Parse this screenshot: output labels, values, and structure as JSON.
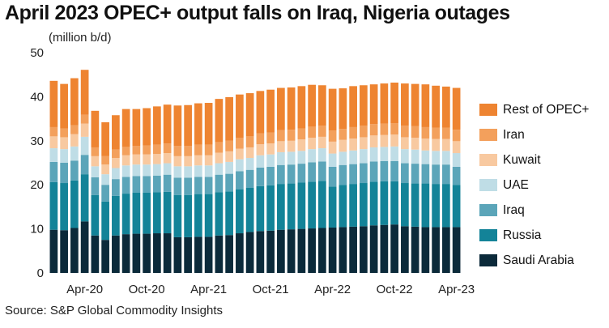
{
  "title": "April 2023 OPEC+ output falls on Iraq, Nigeria outages",
  "unit": "(million b/d)",
  "source": "Source: S&P Global Commodity Insights",
  "chart_data": {
    "type": "bar",
    "stacked": true,
    "categories": [
      "Jan-20",
      "Feb-20",
      "Mar-20",
      "Apr-20",
      "May-20",
      "Jun-20",
      "Jul-20",
      "Aug-20",
      "Sep-20",
      "Oct-20",
      "Nov-20",
      "Dec-20",
      "Jan-21",
      "Feb-21",
      "Mar-21",
      "Apr-21",
      "May-21",
      "Jun-21",
      "Jul-21",
      "Aug-21",
      "Sep-21",
      "Oct-21",
      "Nov-21",
      "Dec-21",
      "Jan-22",
      "Feb-22",
      "Mar-22",
      "Apr-22",
      "May-22",
      "Jun-22",
      "Jul-22",
      "Aug-22",
      "Sep-22",
      "Oct-22",
      "Nov-22",
      "Dec-22",
      "Jan-23",
      "Feb-23",
      "Mar-23",
      "Apr-23"
    ],
    "x_tick_labels": [
      "Apr-20",
      "Oct-20",
      "Apr-21",
      "Oct-21",
      "Apr-22",
      "Oct-22",
      "Apr-23"
    ],
    "ylim": [
      0,
      50
    ],
    "yticks": [
      0,
      10,
      20,
      30,
      40,
      50
    ],
    "legend_position": "right",
    "grid": false,
    "series": [
      {
        "name": "Saudi Arabia",
        "color": "#0b2a3a",
        "values": [
          9.8,
          9.7,
          10.2,
          11.7,
          8.5,
          7.5,
          8.5,
          8.8,
          8.9,
          8.9,
          9.0,
          9.0,
          8.1,
          8.1,
          8.2,
          8.2,
          8.5,
          8.6,
          9.0,
          9.3,
          9.5,
          9.6,
          9.8,
          9.9,
          10.0,
          10.1,
          10.2,
          10.3,
          10.4,
          10.5,
          10.6,
          10.8,
          10.9,
          11.0,
          10.6,
          10.5,
          10.4,
          10.4,
          10.4,
          10.4
        ]
      },
      {
        "name": "Russia",
        "color": "#138398",
        "values": [
          10.8,
          10.7,
          10.8,
          10.7,
          9.2,
          8.7,
          9.0,
          9.2,
          9.3,
          9.3,
          9.3,
          9.4,
          9.6,
          9.6,
          9.7,
          9.7,
          9.8,
          9.9,
          10.0,
          10.0,
          10.2,
          10.3,
          10.4,
          10.4,
          10.5,
          10.6,
          10.7,
          9.3,
          9.6,
          9.7,
          9.8,
          9.9,
          9.9,
          9.8,
          9.8,
          9.8,
          9.9,
          9.8,
          9.8,
          9.6
        ]
      },
      {
        "name": "Iraq",
        "color": "#5ba5b9",
        "values": [
          4.6,
          4.6,
          4.5,
          4.4,
          4.0,
          3.8,
          3.8,
          3.8,
          3.8,
          3.8,
          3.8,
          3.9,
          3.9,
          3.9,
          3.9,
          3.9,
          4.0,
          4.0,
          4.1,
          4.1,
          4.2,
          4.2,
          4.3,
          4.3,
          4.3,
          4.4,
          4.4,
          4.5,
          4.5,
          4.5,
          4.5,
          4.6,
          4.6,
          4.6,
          4.5,
          4.5,
          4.4,
          4.4,
          4.4,
          4.1
        ]
      },
      {
        "name": "UAE",
        "color": "#bfdde6",
        "values": [
          3.1,
          3.1,
          3.2,
          4.1,
          2.5,
          2.4,
          2.5,
          2.6,
          2.6,
          2.6,
          2.6,
          2.6,
          2.6,
          2.6,
          2.6,
          2.6,
          2.6,
          2.7,
          2.7,
          2.7,
          2.8,
          2.8,
          2.9,
          2.9,
          2.9,
          3.0,
          3.0,
          3.0,
          3.0,
          3.1,
          3.2,
          3.2,
          3.2,
          3.3,
          3.2,
          3.2,
          3.1,
          3.1,
          3.1,
          3.1
        ]
      },
      {
        "name": "Kuwait",
        "color": "#f8c9a0",
        "values": [
          2.7,
          2.7,
          2.8,
          3.0,
          2.3,
          2.2,
          2.3,
          2.3,
          2.3,
          2.3,
          2.3,
          2.3,
          2.3,
          2.3,
          2.3,
          2.3,
          2.4,
          2.4,
          2.4,
          2.4,
          2.5,
          2.5,
          2.5,
          2.5,
          2.6,
          2.6,
          2.6,
          2.7,
          2.7,
          2.7,
          2.7,
          2.7,
          2.7,
          2.7,
          2.7,
          2.7,
          2.7,
          2.7,
          2.7,
          2.7
        ]
      },
      {
        "name": "Iran",
        "color": "#f3a05c",
        "values": [
          2.1,
          2.0,
          2.0,
          2.0,
          2.0,
          1.9,
          1.9,
          1.9,
          1.9,
          2.0,
          2.1,
          2.2,
          2.3,
          2.3,
          2.4,
          2.4,
          2.4,
          2.4,
          2.5,
          2.5,
          2.5,
          2.5,
          2.5,
          2.5,
          2.5,
          2.5,
          2.5,
          2.5,
          2.5,
          2.6,
          2.6,
          2.6,
          2.6,
          2.6,
          2.6,
          2.6,
          2.6,
          2.6,
          2.6,
          2.6
        ]
      },
      {
        "name": "Rest of OPEC+",
        "color": "#ee8431",
        "values": [
          10.5,
          10.1,
          10.7,
          10.2,
          8.3,
          7.7,
          7.8,
          8.6,
          8.4,
          8.5,
          8.7,
          8.8,
          9.2,
          9.3,
          9.4,
          9.5,
          9.8,
          9.9,
          9.8,
          9.8,
          9.6,
          9.7,
          9.6,
          9.6,
          9.6,
          9.5,
          9.2,
          9.5,
          9.2,
          9.3,
          9.2,
          9.0,
          9.1,
          9.2,
          9.6,
          9.6,
          9.7,
          9.5,
          9.3,
          9.5
        ]
      }
    ]
  }
}
